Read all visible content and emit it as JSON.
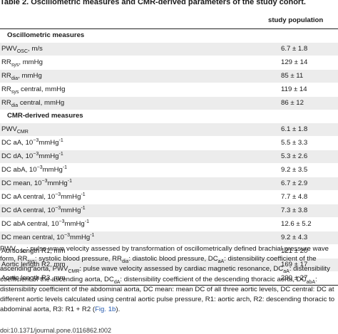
{
  "title": "Table 2. Oscillometric measures and CMR-derived parameters of the study cohort.",
  "column_header": "study population",
  "sections": [
    {
      "name": "Oscillometric measures",
      "rows": [
        {
          "label_main": "PWV",
          "label_sub": "OSC",
          "label_rest": ", m/s",
          "value": "6.7 ± 1.8"
        },
        {
          "label_main": "RR",
          "label_sub": "sys",
          "label_rest": ", mmHg",
          "value": "129 ± 14"
        },
        {
          "label_main": "RR",
          "label_sub": "dia",
          "label_rest": ", mmHg",
          "value": "85 ± 11"
        },
        {
          "label_main": "RR",
          "label_sub": "sys",
          "label_rest": " central, mmHg",
          "value": "119 ± 14"
        },
        {
          "label_main": "RR",
          "label_sub": "dia",
          "label_rest": " central, mmHg",
          "value": "86 ± 12"
        }
      ]
    },
    {
      "name": "CMR-derived measures",
      "rows": [
        {
          "label_main": "PWV",
          "label_sub": "CMR",
          "label_rest": "",
          "value": "6.1 ± 1.8"
        },
        {
          "label_main": "DC aA, 10",
          "label_sup": "−3",
          "label_rest": "mmHg",
          "label_sup2": "-1",
          "value": "5.5 ± 3.3"
        },
        {
          "label_main": "DC dA, 10",
          "label_sup": "−3",
          "label_rest": "mmHg",
          "label_sup2": "-1",
          "value": "5.3 ± 2.6"
        },
        {
          "label_main": "DC abA, 10",
          "label_sup": "−3",
          "label_rest": "mmHg",
          "label_sup2": "-1",
          "value": "9.2 ± 3.5"
        },
        {
          "label_main": "DC mean, 10",
          "label_sup": "−3",
          "label_rest": "mmHg",
          "label_sup2": "-1",
          "value": "6.7 ± 2.9"
        },
        {
          "label_main": "DC aA central, 10",
          "label_sup": "−3",
          "label_rest": "mmHg",
          "label_sup2": "-1",
          "value": "7.7 ± 4.8"
        },
        {
          "label_main": "DC dA central, 10",
          "label_sup": "−3",
          "label_rest": "mmHg",
          "label_sup2": "-1",
          "value": "7.3 ± 3.8"
        },
        {
          "label_main": "DC abA central, 10",
          "label_sup": "−3",
          "label_rest": "mmHg",
          "label_sup2": "-1",
          "value": "12.6 ± 5.2"
        },
        {
          "label_main": "DC mean central, 10",
          "label_sup": "−3",
          "label_rest": "mmHg",
          "label_sup2": "-1",
          "value": "9.2 ± 4.3"
        },
        {
          "label_main": "Aortic length R1, mm",
          "value": "121 ± 20"
        },
        {
          "label_main": "Aortic length R2, mm",
          "value": "169 ± 17"
        },
        {
          "label_main": "Aortic length R3, mm",
          "value": "290 ± 27"
        }
      ]
    }
  ],
  "footnote": {
    "parts": [
      {
        "t": "PWV"
      },
      {
        "sub": "OSC"
      },
      {
        "t": ": pulse wave velocity assessed by transformation of oscillometrically defined brachial pressure wave form, RR"
      },
      {
        "sub": "sys"
      },
      {
        "t": ": systolic blood pressure, RR"
      },
      {
        "sub": "dia"
      },
      {
        "t": ": diastolic blood pressure, DC"
      },
      {
        "sub": "aA"
      },
      {
        "t": ": distensibility coefficient of the ascending aorta, PWV"
      },
      {
        "sub": "CMR"
      },
      {
        "t": ": pulse wave velocity assessed by cardiac magnetic resonance, DC"
      },
      {
        "sub": "aA"
      },
      {
        "t": ": distensibility coefficient of the ascending aorta, DC"
      },
      {
        "sub": "dA"
      },
      {
        "t": ": distensibility coefficient of the descending thoracic aorta, DC"
      },
      {
        "sub": "abA"
      },
      {
        "t": ": distensibility coefficient of the abdominal aorta, DC mean: mean DC of all three aortic levels, DC central: DC at different aortic levels calculated using central aortic pulse pressure, R1: aortic arch, R2: descending thoracic to abdominal aorta, R3: R1 + R2 ("
      },
      {
        "link": "Fig. 1b"
      },
      {
        "t": ")."
      }
    ]
  },
  "doi": "doi:10.1371/journal.pone.0116862.t002"
}
